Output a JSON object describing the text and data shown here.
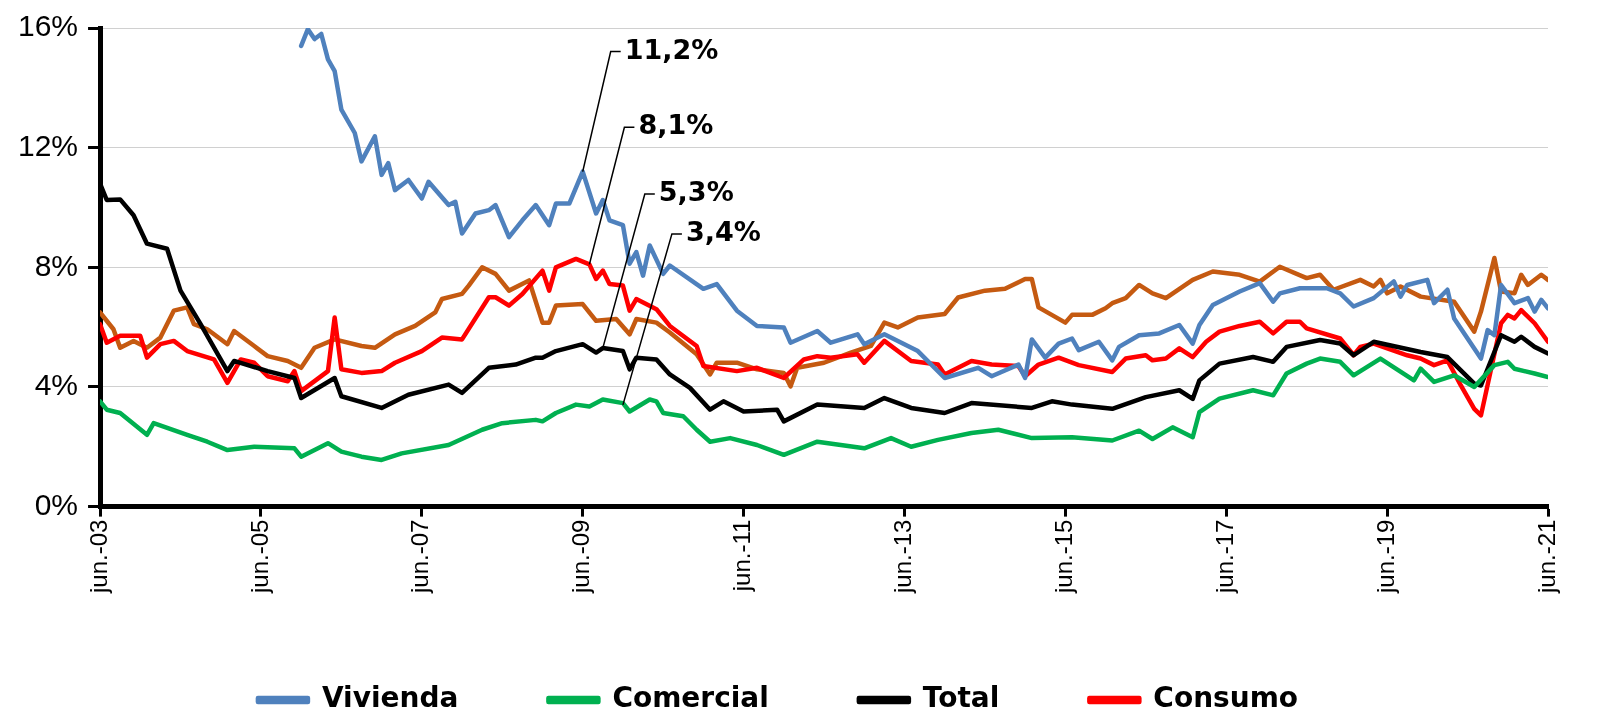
{
  "chart_data": {
    "type": "line",
    "marker": "none",
    "grid": "y",
    "legend": "bottom",
    "xlim": [
      "2003-06",
      "2021-06"
    ],
    "xticks": [
      {
        "value": "2003-06",
        "label": "jun.-03"
      },
      {
        "value": "2005-06",
        "label": "jun.-05"
      },
      {
        "value": "2007-06",
        "label": "jun.-07"
      },
      {
        "value": "2009-06",
        "label": "jun.-09"
      },
      {
        "value": "2011-06",
        "label": "jun.-11"
      },
      {
        "value": "2013-06",
        "label": "jun.-13"
      },
      {
        "value": "2015-06",
        "label": "jun.-15"
      },
      {
        "value": "2017-06",
        "label": "jun.-17"
      },
      {
        "value": "2019-06",
        "label": "jun.-19"
      },
      {
        "value": "2021-06",
        "label": "jun.-21"
      }
    ],
    "ylim": [
      0,
      16
    ],
    "yticks": [
      {
        "value": 0,
        "label": "0%"
      },
      {
        "value": 4,
        "label": "4%"
      },
      {
        "value": 8,
        "label": "8%"
      },
      {
        "value": 12,
        "label": "12%"
      },
      {
        "value": 16,
        "label": "16%"
      }
    ],
    "annotations": [
      {
        "text": "11,2%",
        "x": "2009-06",
        "y": 11.2
      },
      {
        "text": "8,1%",
        "x": "2009-07",
        "y": 8.1
      },
      {
        "text": "5,3%",
        "x": "2009-09",
        "y": 5.3
      },
      {
        "text": "3,4%",
        "x": "2009-12",
        "y": 3.4
      }
    ],
    "series": [
      {
        "name": "Vivienda",
        "color": "#4f81bd",
        "x": [
          "2005-12",
          "2006-01",
          "2006-02",
          "2006-03",
          "2006-04",
          "2006-05",
          "2006-06",
          "2006-08",
          "2006-09",
          "2006-11",
          "2006-12",
          "2007-01",
          "2007-02",
          "2007-04",
          "2007-06",
          "2007-07",
          "2007-10",
          "2007-11",
          "2007-12",
          "2008-02",
          "2008-04",
          "2008-05",
          "2008-07",
          "2008-09",
          "2008-11",
          "2009-01",
          "2009-02",
          "2009-04",
          "2009-06",
          "2009-08",
          "2009-09",
          "2009-10",
          "2009-12",
          "2010-01",
          "2010-02",
          "2010-03",
          "2010-04",
          "2010-06",
          "2010-07",
          "2010-12",
          "2011-02",
          "2011-05",
          "2011-08",
          "2011-12",
          "2012-01",
          "2012-05",
          "2012-07",
          "2012-11",
          "2012-12",
          "2013-03",
          "2013-08",
          "2013-12",
          "2014-05",
          "2014-07",
          "2014-11",
          "2014-12",
          "2015-01",
          "2015-03",
          "2015-05",
          "2015-07",
          "2015-08",
          "2015-11",
          "2016-01",
          "2016-02",
          "2016-05",
          "2016-08",
          "2016-11",
          "2017-01",
          "2017-02",
          "2017-04",
          "2017-08",
          "2017-11",
          "2018-01",
          "2018-02",
          "2018-05",
          "2018-09",
          "2018-11",
          "2019-01",
          "2019-04",
          "2019-07",
          "2019-08",
          "2019-09",
          "2019-12",
          "2020-01",
          "2020-03",
          "2020-04",
          "2020-08",
          "2020-09",
          "2020-10",
          "2020-11",
          "2021-01",
          "2021-03",
          "2021-04",
          "2021-05",
          "2021-06"
        ],
        "values": [
          15.4,
          15.96,
          15.63,
          15.8,
          14.95,
          14.56,
          13.27,
          12.49,
          11.54,
          12.38,
          11.09,
          11.48,
          10.58,
          10.92,
          10.3,
          10.86,
          10.08,
          10.19,
          9.13,
          9.8,
          9.91,
          10.08,
          9.01,
          9.57,
          10.08,
          9.41,
          10.13,
          10.13,
          11.2,
          9.8,
          10.25,
          9.57,
          9.41,
          8.12,
          8.51,
          7.72,
          8.73,
          7.78,
          8.06,
          7.28,
          7.44,
          6.55,
          6.04,
          5.99,
          5.48,
          5.87,
          5.48,
          5.76,
          5.43,
          5.76,
          5.2,
          4.3,
          4.64,
          4.36,
          4.75,
          4.3,
          5.59,
          4.98,
          5.45,
          5.62,
          5.23,
          5.51,
          4.89,
          5.34,
          5.73,
          5.79,
          6.07,
          5.45,
          6.07,
          6.74,
          7.19,
          7.47,
          6.85,
          7.13,
          7.3,
          7.3,
          7.13,
          6.69,
          6.97,
          7.53,
          7.02,
          7.41,
          7.58,
          6.8,
          7.25,
          6.29,
          4.95,
          5.9,
          5.73,
          7.41,
          6.8,
          6.97,
          6.52,
          6.91,
          6.63
        ]
      },
      {
        "name": "Comercial",
        "color": "#00b050",
        "x": [
          "2003-06",
          "2003-07",
          "2003-09",
          "2004-01",
          "2004-02",
          "2004-07",
          "2004-10",
          "2005-01",
          "2005-05",
          "2005-11",
          "2005-12",
          "2006-04",
          "2006-06",
          "2006-09",
          "2006-12",
          "2007-03",
          "2007-10",
          "2008-03",
          "2008-06",
          "2008-11",
          "2008-12",
          "2009-02",
          "2009-05",
          "2009-07",
          "2009-09",
          "2009-12",
          "2010-01",
          "2010-04",
          "2010-05",
          "2010-06",
          "2010-09",
          "2010-11",
          "2011-01",
          "2011-04",
          "2011-08",
          "2011-12",
          "2012-05",
          "2012-12",
          "2013-04",
          "2013-07",
          "2013-11",
          "2014-04",
          "2014-08",
          "2015-01",
          "2015-07",
          "2016-01",
          "2016-05",
          "2016-07",
          "2016-10",
          "2017-01",
          "2017-02",
          "2017-05",
          "2017-10",
          "2018-01",
          "2018-03",
          "2018-06",
          "2018-08",
          "2018-11",
          "2019-01",
          "2019-05",
          "2019-10",
          "2019-11",
          "2020-01",
          "2020-04",
          "2020-07",
          "2020-10",
          "2020-12",
          "2021-01",
          "2021-04",
          "2021-06"
        ],
        "values": [
          3.52,
          3.24,
          3.13,
          2.4,
          2.79,
          2.4,
          2.17,
          1.89,
          2.0,
          1.95,
          1.67,
          2.12,
          1.84,
          1.67,
          1.56,
          1.78,
          2.06,
          2.57,
          2.79,
          2.9,
          2.85,
          3.13,
          3.41,
          3.35,
          3.58,
          3.46,
          3.18,
          3.58,
          3.52,
          3.13,
          3.02,
          2.57,
          2.17,
          2.29,
          2.06,
          1.73,
          2.17,
          1.95,
          2.29,
          2.0,
          2.23,
          2.46,
          2.57,
          2.29,
          2.32,
          2.21,
          2.54,
          2.26,
          2.65,
          2.32,
          3.16,
          3.61,
          3.89,
          3.72,
          4.45,
          4.78,
          4.95,
          4.84,
          4.39,
          4.95,
          4.22,
          4.61,
          4.17,
          4.39,
          4.0,
          4.73,
          4.84,
          4.61,
          4.45,
          4.33
        ]
      },
      {
        "name": "Total",
        "color": "#000000",
        "x": [
          "2003-06",
          "2003-07",
          "2003-09",
          "2003-11",
          "2004-01",
          "2004-04",
          "2004-06",
          "2004-09",
          "2005-01",
          "2005-02",
          "2005-07",
          "2005-11",
          "2005-12",
          "2006-05",
          "2006-06",
          "2006-12",
          "2007-04",
          "2007-10",
          "2007-12",
          "2008-04",
          "2008-08",
          "2008-11",
          "2008-12",
          "2009-02",
          "2009-06",
          "2009-08",
          "2009-09",
          "2009-12",
          "2010-01",
          "2010-02",
          "2010-05",
          "2010-07",
          "2010-10",
          "2011-01",
          "2011-03",
          "2011-06",
          "2011-11",
          "2011-12",
          "2012-05",
          "2012-12",
          "2013-03",
          "2013-07",
          "2013-12",
          "2014-04",
          "2015-01",
          "2015-04",
          "2015-07",
          "2016-01",
          "2016-06",
          "2016-11",
          "2017-01",
          "2017-02",
          "2017-05",
          "2017-10",
          "2018-01",
          "2018-03",
          "2018-08",
          "2018-11",
          "2019-01",
          "2019-04",
          "2019-11",
          "2020-03",
          "2020-07",
          "2020-08",
          "2020-11",
          "2021-01",
          "2021-02",
          "2021-04",
          "2021-06"
        ],
        "values": [
          10.8,
          10.25,
          10.27,
          9.74,
          8.79,
          8.62,
          7.22,
          6.1,
          4.53,
          4.87,
          4.53,
          4.3,
          3.63,
          4.3,
          3.69,
          3.3,
          3.74,
          4.08,
          3.8,
          4.64,
          4.75,
          4.98,
          4.98,
          5.2,
          5.43,
          5.15,
          5.3,
          5.2,
          4.59,
          4.98,
          4.92,
          4.42,
          3.97,
          3.24,
          3.52,
          3.18,
          3.24,
          2.85,
          3.41,
          3.3,
          3.63,
          3.3,
          3.13,
          3.46,
          3.3,
          3.52,
          3.41,
          3.27,
          3.66,
          3.89,
          3.6,
          4.22,
          4.78,
          5.0,
          4.84,
          5.34,
          5.57,
          5.45,
          5.06,
          5.51,
          5.17,
          5.0,
          4.11,
          4.05,
          5.73,
          5.51,
          5.68,
          5.34,
          5.12
        ]
      },
      {
        "name": "Consumo",
        "color": "#ff0000",
        "x": [
          "2003-06",
          "2003-07",
          "2003-09",
          "2003-12",
          "2004-01",
          "2004-03",
          "2004-05",
          "2004-07",
          "2004-11",
          "2005-01",
          "2005-03",
          "2005-05",
          "2005-07",
          "2005-10",
          "2005-11",
          "2005-12",
          "2006-04",
          "2006-05",
          "2006-06",
          "2006-09",
          "2006-12",
          "2007-02",
          "2007-06",
          "2007-09",
          "2007-12",
          "2008-04",
          "2008-05",
          "2008-07",
          "2008-09",
          "2008-12",
          "2009-01",
          "2009-02",
          "2009-05",
          "2009-07",
          "2009-08",
          "2009-09",
          "2009-10",
          "2009-12",
          "2010-01",
          "2010-02",
          "2010-05",
          "2010-07",
          "2010-11",
          "2010-12",
          "2011-05",
          "2011-08",
          "2011-12",
          "2012-03",
          "2012-05",
          "2012-07",
          "2012-11",
          "2012-12",
          "2013-03",
          "2013-07",
          "2013-11",
          "2013-12",
          "2014-04",
          "2014-07",
          "2014-11",
          "2014-12",
          "2015-02",
          "2015-05",
          "2015-08",
          "2016-01",
          "2016-03",
          "2016-06",
          "2016-07",
          "2016-09",
          "2016-11",
          "2017-01",
          "2017-03",
          "2017-05",
          "2017-08",
          "2017-11",
          "2018-01",
          "2018-03",
          "2018-05",
          "2018-06",
          "2018-11",
          "2019-01",
          "2019-02",
          "2019-04",
          "2019-09",
          "2019-11",
          "2020-01",
          "2020-03",
          "2020-05",
          "2020-07",
          "2020-08",
          "2020-11",
          "2020-12",
          "2021-01",
          "2021-02",
          "2021-04",
          "2021-06"
        ],
        "values": [
          6.1,
          5.48,
          5.71,
          5.71,
          4.98,
          5.43,
          5.54,
          5.2,
          4.92,
          4.14,
          4.92,
          4.81,
          4.36,
          4.19,
          4.53,
          3.86,
          4.53,
          6.32,
          4.59,
          4.47,
          4.53,
          4.81,
          5.2,
          5.65,
          5.59,
          7.0,
          7.0,
          6.72,
          7.11,
          7.89,
          7.22,
          8.0,
          8.28,
          8.1,
          7.61,
          7.89,
          7.44,
          7.39,
          6.55,
          6.94,
          6.6,
          6.04,
          5.37,
          4.7,
          4.53,
          4.64,
          4.3,
          4.92,
          5.03,
          4.98,
          5.09,
          4.81,
          5.54,
          4.87,
          4.75,
          4.42,
          4.87,
          4.75,
          4.7,
          4.36,
          4.75,
          4.98,
          4.73,
          4.5,
          4.95,
          5.06,
          4.89,
          4.95,
          5.29,
          5.0,
          5.51,
          5.85,
          6.04,
          6.18,
          5.79,
          6.18,
          6.18,
          5.96,
          5.62,
          5.06,
          5.34,
          5.45,
          5.06,
          4.95,
          4.73,
          4.89,
          4.05,
          3.27,
          3.05,
          6.13,
          6.41,
          6.29,
          6.57,
          6.13,
          5.51
        ]
      },
      {
        "color": "#c55a11",
        "x": [
          "2003-06",
          "2003-08",
          "2003-09",
          "2003-11",
          "2004-01",
          "2004-03",
          "2004-05",
          "2004-07",
          "2004-08",
          "2004-10",
          "2005-01",
          "2005-02",
          "2005-05",
          "2005-07",
          "2005-10",
          "2005-12",
          "2006-02",
          "2006-05",
          "2006-09",
          "2006-11",
          "2007-02",
          "2007-05",
          "2007-08",
          "2007-09",
          "2007-12",
          "2008-01",
          "2008-03",
          "2008-05",
          "2008-07",
          "2008-10",
          "2008-12",
          "2009-01",
          "2009-02",
          "2009-06",
          "2009-08",
          "2009-11",
          "2010-01",
          "2010-02",
          "2010-05",
          "2010-07",
          "2010-11",
          "2011-01",
          "2011-02",
          "2011-05",
          "2011-08",
          "2011-12",
          "2012-01",
          "2012-02",
          "2012-06",
          "2012-10",
          "2013-01",
          "2013-03",
          "2013-05",
          "2013-08",
          "2013-12",
          "2014-02",
          "2014-06",
          "2014-09",
          "2014-12",
          "2015-01",
          "2015-02",
          "2015-06",
          "2015-07",
          "2015-10",
          "2015-12",
          "2016-01",
          "2016-03",
          "2016-05",
          "2016-07",
          "2016-09",
          "2017-01",
          "2017-04",
          "2017-08",
          "2017-11",
          "2018-02",
          "2018-06",
          "2018-08",
          "2018-10",
          "2019-02",
          "2019-04",
          "2019-05",
          "2019-06",
          "2019-08",
          "2019-11",
          "2020-04",
          "2020-07",
          "2020-08",
          "2020-10",
          "2020-11",
          "2021-01",
          "2021-02",
          "2021-03",
          "2021-05",
          "2021-06"
        ],
        "values": [
          6.49,
          5.93,
          5.31,
          5.54,
          5.31,
          5.65,
          6.55,
          6.66,
          6.1,
          5.93,
          5.43,
          5.87,
          5.37,
          5.03,
          4.87,
          4.64,
          5.31,
          5.59,
          5.37,
          5.31,
          5.76,
          6.04,
          6.49,
          6.94,
          7.11,
          7.39,
          8.0,
          7.78,
          7.22,
          7.56,
          6.15,
          6.15,
          6.72,
          6.77,
          6.21,
          6.27,
          5.76,
          6.27,
          6.15,
          5.82,
          5.09,
          4.42,
          4.81,
          4.81,
          4.59,
          4.47,
          4.02,
          4.64,
          4.81,
          5.15,
          5.37,
          6.15,
          5.99,
          6.32,
          6.44,
          6.99,
          7.22,
          7.28,
          7.61,
          7.61,
          6.66,
          6.15,
          6.41,
          6.41,
          6.63,
          6.8,
          6.97,
          7.41,
          7.13,
          6.97,
          7.58,
          7.86,
          7.75,
          7.52,
          8.02,
          7.64,
          7.75,
          7.25,
          7.58,
          7.36,
          7.58,
          7.13,
          7.36,
          7.02,
          6.85,
          5.85,
          6.52,
          8.31,
          7.19,
          7.13,
          7.75,
          7.41,
          7.75,
          7.58
        ]
      }
    ]
  }
}
